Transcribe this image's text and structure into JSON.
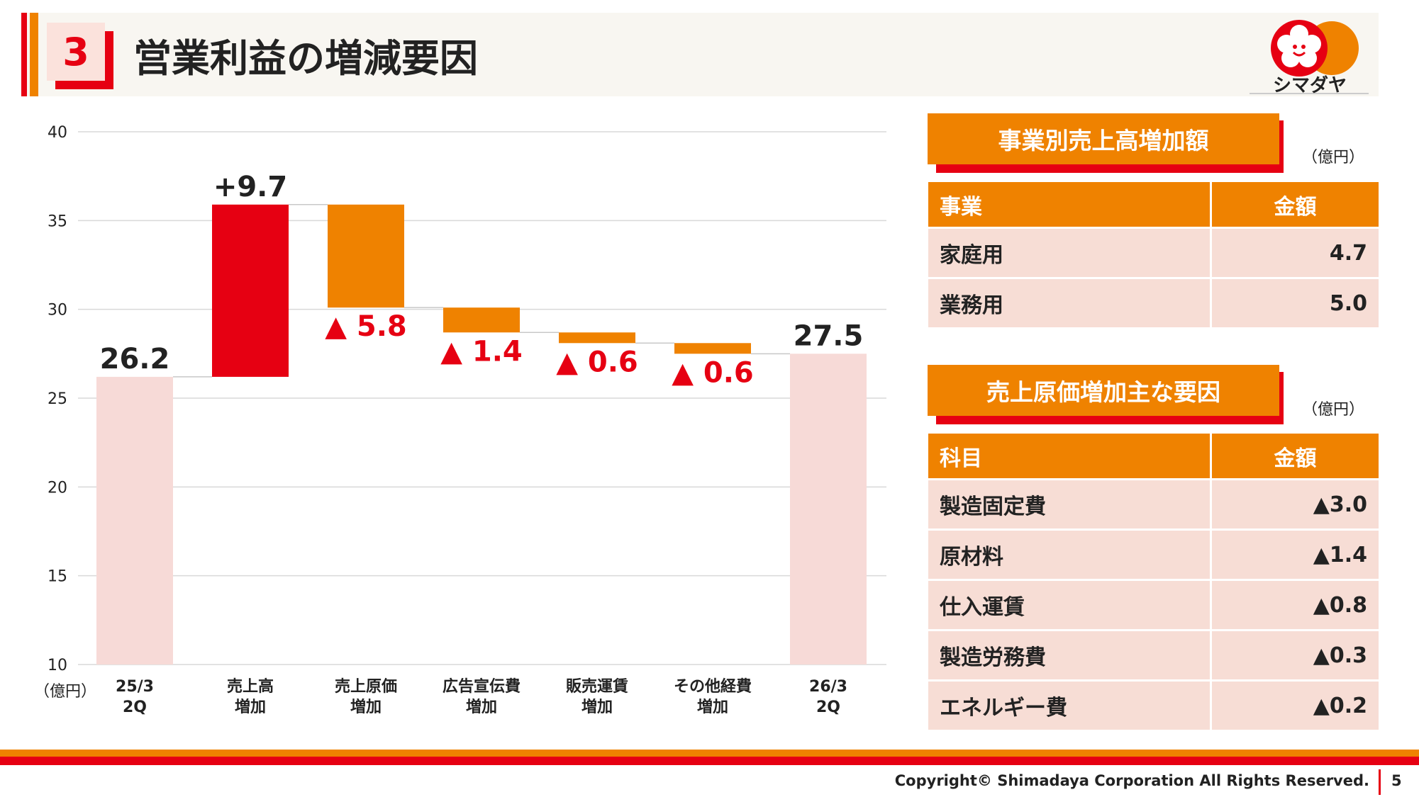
{
  "header": {
    "section_number": "3",
    "title": "営業利益の増減要因"
  },
  "logo": {
    "brand_text": "シマダヤ"
  },
  "colors": {
    "red": "#e60012",
    "orange": "#ef8200",
    "pink": "#f7dad7",
    "cell_bg": "#f7ddd5"
  },
  "chart_data": {
    "type": "bar",
    "subtype": "waterfall",
    "unit_label": "（億円）",
    "ylim": [
      10,
      40
    ],
    "yticks": [
      10,
      15,
      20,
      25,
      30,
      35,
      40
    ],
    "grid": true,
    "categories": [
      [
        "25/3",
        "2Q"
      ],
      [
        "売上高",
        "増加"
      ],
      [
        "売上原価",
        "増加"
      ],
      [
        "広告宣伝費",
        "増加"
      ],
      [
        "販売運賃",
        "増加"
      ],
      [
        "その他経費",
        "増加"
      ],
      [
        "26/3",
        "2Q"
      ]
    ],
    "bars": [
      {
        "kind": "total",
        "start": 0,
        "end": 26.2,
        "label": "26.2",
        "color": "#f7dad7",
        "label_color": "#222222"
      },
      {
        "kind": "increase",
        "start": 26.2,
        "end": 35.9,
        "label": "+9.7",
        "color": "#e60012",
        "label_color": "#222222"
      },
      {
        "kind": "decrease",
        "start": 35.9,
        "end": 30.1,
        "label": "▲ 5.8",
        "color": "#ef8200",
        "label_color": "#e60012"
      },
      {
        "kind": "decrease",
        "start": 30.1,
        "end": 28.7,
        "label": "▲ 1.4",
        "color": "#ef8200",
        "label_color": "#e60012"
      },
      {
        "kind": "decrease",
        "start": 28.7,
        "end": 28.1,
        "label": "▲ 0.6",
        "color": "#ef8200",
        "label_color": "#e60012"
      },
      {
        "kind": "decrease",
        "start": 28.1,
        "end": 27.5,
        "label": "▲ 0.6",
        "color": "#ef8200",
        "label_color": "#e60012"
      },
      {
        "kind": "total",
        "start": 0,
        "end": 27.5,
        "label": "27.5",
        "color": "#f7dad7",
        "label_color": "#222222"
      }
    ]
  },
  "sales_panel": {
    "title": "事業別売上高増加額",
    "unit": "（億円）",
    "headers": [
      "事業",
      "金額"
    ],
    "rows": [
      [
        "家庭用",
        "4.7"
      ],
      [
        "業務用",
        "5.0"
      ]
    ]
  },
  "cost_panel": {
    "title": "売上原価増加主な要因",
    "unit": "（億円）",
    "headers": [
      "科目",
      "金額"
    ],
    "rows": [
      [
        "製造固定費",
        "▲3.0"
      ],
      [
        "原材料",
        "▲1.4"
      ],
      [
        "仕入運賃",
        "▲0.8"
      ],
      [
        "製造労務費",
        "▲0.3"
      ],
      [
        "エネルギー費",
        "▲0.2"
      ]
    ]
  },
  "footer": {
    "copyright": "Copyright© Shimadaya Corporation All Rights Reserved.",
    "page_number": "5"
  }
}
